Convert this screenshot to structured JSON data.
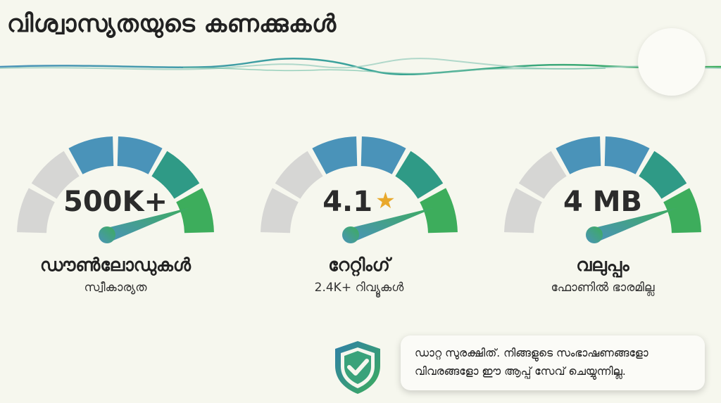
{
  "title": "വിശ്വാസ്യതയുടെ കണക്കുകൾ",
  "gauges": [
    {
      "value": "500K+",
      "label": "ഡൗൺലോഡുകൾ",
      "sub": "സ്വീകാര്യത",
      "star": false
    },
    {
      "value": "4.1",
      "star_glyph": "★",
      "label": "റേറ്റിംഗ്",
      "sub": "2.4K+ റിവ്യൂകൾ",
      "star": true
    },
    {
      "value": "4 MB",
      "label": "വലുപ്പം",
      "sub": "ഫോണിൽ ഭാരമില്ല",
      "star": false
    }
  ],
  "privacy": {
    "text": "ഡാറ്റ സുരക്ഷിത്. നിങ്ങളുടെ സംഭാഷണങ്ങളോ വിവരങ്ങളോ ഈ ആപ്പ് സേവ് ചെയ്യുന്നില്ല."
  },
  "colors": {
    "background": "#f6f7ee",
    "segment_gray": "#d6d6d4",
    "segment_blue": "#4a93b9",
    "segment_teal": "#2f9a86",
    "segment_green": "#3dad5c",
    "star": "#e8a82b"
  },
  "icons": [
    "shield-check-icon",
    "gauge-needle-icon"
  ]
}
